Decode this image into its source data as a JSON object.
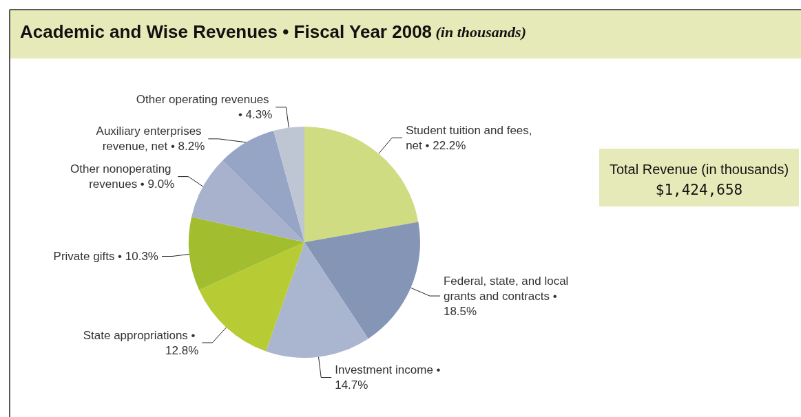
{
  "chart_data": {
    "type": "pie",
    "title": "Academic and Wise Revenues • Fiscal Year 2008",
    "subtitle": "(in thousands)",
    "categories": [
      "Student tuition and fees, net",
      "Federal, state, and local grants and contracts",
      "Investment income",
      "State appropriations",
      "Private gifts",
      "Other nonoperating revenues",
      "Auxiliary enterprises revenue, net",
      "Other operating revenues"
    ],
    "values": [
      22.2,
      18.5,
      14.7,
      12.8,
      10.3,
      9.0,
      8.2,
      4.3
    ],
    "value_labels": [
      "• 22.2%",
      "• 18.5%",
      "• 14.7%",
      "• 12.8%",
      "• 10.3%",
      "• 9.0%",
      "• 8.2%",
      "• 4.3%"
    ],
    "colors": [
      "#d0dc82",
      "#8595b5",
      "#aab5cf",
      "#b7cb35",
      "#a2be2f",
      "#a9b2cc",
      "#96a5c6",
      "#bec6d4"
    ],
    "annotations": [
      "Total Revenue (in thousands)",
      "$1,424,658"
    ],
    "legend": false
  }
}
